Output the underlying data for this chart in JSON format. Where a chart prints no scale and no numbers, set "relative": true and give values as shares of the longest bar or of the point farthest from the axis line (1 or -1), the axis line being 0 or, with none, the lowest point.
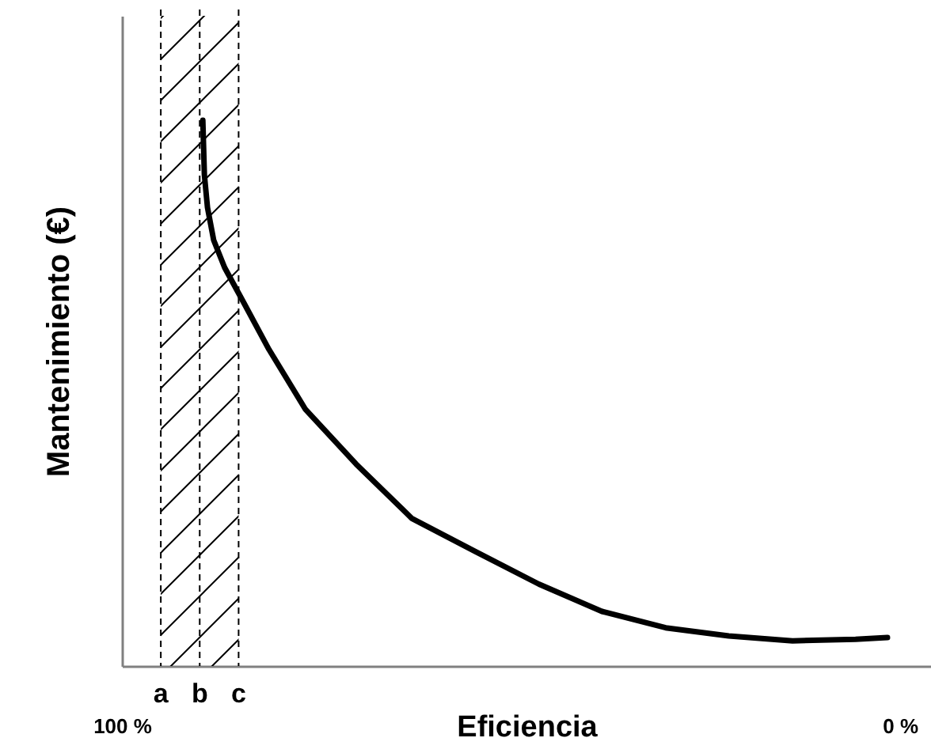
{
  "chart_data": {
    "type": "line",
    "xlabel": "Eficiencia",
    "ylabel": "Mantenimiento (€)",
    "relative": true,
    "xlim": [
      100,
      -4
    ],
    "xticks": [
      {
        "value": 100,
        "label": "100 %"
      },
      {
        "value": 0,
        "label": "0 %"
      }
    ],
    "x": [
      89.6,
      89.4,
      89.0,
      88.2,
      86.8,
      84.5,
      81.1,
      76.4,
      69.9,
      62.7,
      54.6,
      46.4,
      38.3,
      30.1,
      22.0,
      13.8,
      5.7,
      1.6
    ],
    "series": [
      {
        "color": "#000000",
        "values": [
          1.0,
          0.9,
          0.84,
          0.78,
          0.73,
          0.67,
          0.58,
          0.47,
          0.37,
          0.27,
          0.21,
          0.15,
          0.1,
          0.07,
          0.055,
          0.046,
          0.049,
          0.052
        ]
      }
    ],
    "ref_lines": [
      {
        "axis": "x",
        "value": 95,
        "label": "a",
        "line_style": "dashed"
      },
      {
        "axis": "x",
        "value": 90,
        "label": "b",
        "line_style": "dashed"
      },
      {
        "axis": "x",
        "value": 85,
        "label": "c",
        "line_style": "dashed"
      }
    ],
    "bands": [
      {
        "axis": "x",
        "from": 95,
        "to": 85,
        "color": "#000000"
      }
    ],
    "grid": false,
    "marker": "none",
    "line_style": "solid"
  }
}
